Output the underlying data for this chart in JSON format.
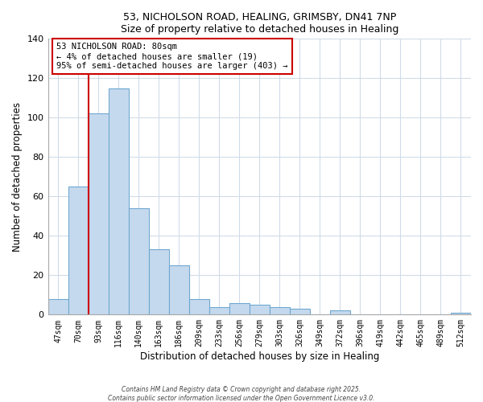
{
  "title1": "53, NICHOLSON ROAD, HEALING, GRIMSBY, DN41 7NP",
  "title2": "Size of property relative to detached houses in Healing",
  "xlabel": "Distribution of detached houses by size in Healing",
  "ylabel": "Number of detached properties",
  "bar_labels": [
    "47sqm",
    "70sqm",
    "93sqm",
    "116sqm",
    "140sqm",
    "163sqm",
    "186sqm",
    "209sqm",
    "233sqm",
    "256sqm",
    "279sqm",
    "303sqm",
    "326sqm",
    "349sqm",
    "372sqm",
    "396sqm",
    "419sqm",
    "442sqm",
    "465sqm",
    "489sqm",
    "512sqm"
  ],
  "bar_values": [
    8,
    65,
    102,
    115,
    54,
    33,
    25,
    8,
    4,
    6,
    5,
    4,
    3,
    0,
    2,
    0,
    0,
    0,
    0,
    0,
    1
  ],
  "bar_color": "#c5d9ee",
  "bar_edge_color": "#6fa8d0",
  "vline_color": "#cc0000",
  "annotation_title": "53 NICHOLSON ROAD: 80sqm",
  "annotation_line1": "← 4% of detached houses are smaller (19)",
  "annotation_line2": "95% of semi-detached houses are larger (403) →",
  "box_edge_color": "#cc0000",
  "ylim": [
    0,
    140
  ],
  "yticks": [
    0,
    20,
    40,
    60,
    80,
    100,
    120,
    140
  ],
  "footer1": "Contains HM Land Registry data © Crown copyright and database right 2025.",
  "footer2": "Contains public sector information licensed under the Open Government Licence v3.0.",
  "bg_color": "#ffffff",
  "grid_color": "#d0dce8"
}
